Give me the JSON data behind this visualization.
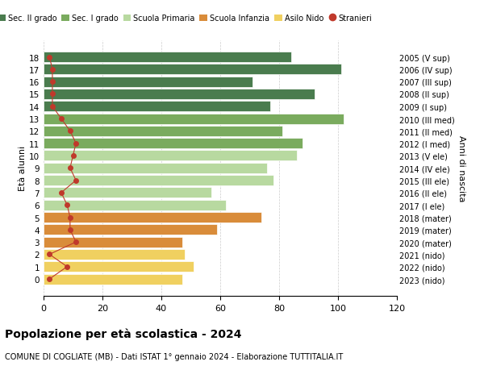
{
  "ages": [
    18,
    17,
    16,
    15,
    14,
    13,
    12,
    11,
    10,
    9,
    8,
    7,
    6,
    5,
    4,
    3,
    2,
    1,
    0
  ],
  "years": [
    "2005 (V sup)",
    "2006 (IV sup)",
    "2007 (III sup)",
    "2008 (II sup)",
    "2009 (I sup)",
    "2010 (III med)",
    "2011 (II med)",
    "2012 (I med)",
    "2013 (V ele)",
    "2014 (IV ele)",
    "2015 (III ele)",
    "2016 (II ele)",
    "2017 (I ele)",
    "2018 (mater)",
    "2019 (mater)",
    "2020 (mater)",
    "2021 (nido)",
    "2022 (nido)",
    "2023 (nido)"
  ],
  "bar_values": [
    84,
    101,
    71,
    92,
    77,
    102,
    81,
    88,
    86,
    76,
    78,
    57,
    62,
    74,
    59,
    47,
    48,
    51,
    47
  ],
  "stranieri_values": [
    2,
    3,
    3,
    3,
    3,
    6,
    9,
    11,
    10,
    9,
    11,
    6,
    8,
    9,
    9,
    11,
    2,
    8,
    2
  ],
  "bar_colors": [
    "#4a7c4e",
    "#4a7c4e",
    "#4a7c4e",
    "#4a7c4e",
    "#4a7c4e",
    "#7aab5e",
    "#7aab5e",
    "#7aab5e",
    "#b8d9a0",
    "#b8d9a0",
    "#b8d9a0",
    "#b8d9a0",
    "#b8d9a0",
    "#d98c3a",
    "#d98c3a",
    "#d98c3a",
    "#f0d060",
    "#f0d060",
    "#f0d060"
  ],
  "legend_labels": [
    "Sec. II grado",
    "Sec. I grado",
    "Scuola Primaria",
    "Scuola Infanzia",
    "Asilo Nido",
    "Stranieri"
  ],
  "legend_colors": [
    "#4a7c4e",
    "#7aab5e",
    "#b8d9a0",
    "#d98c3a",
    "#f0d060",
    "#c0392b"
  ],
  "stranieri_color": "#c0392b",
  "title": "Popolazione per età scolastica - 2024",
  "subtitle": "COMUNE DI COGLIATE (MB) - Dati ISTAT 1° gennaio 2024 - Elaborazione TUTTITALIA.IT",
  "ylabel": "Età alunni",
  "right_ylabel": "Anni di nascita",
  "xlim": [
    0,
    120
  ],
  "xticks": [
    0,
    20,
    40,
    60,
    80,
    100,
    120
  ],
  "background_color": "#ffffff",
  "grid_color": "#cccccc"
}
